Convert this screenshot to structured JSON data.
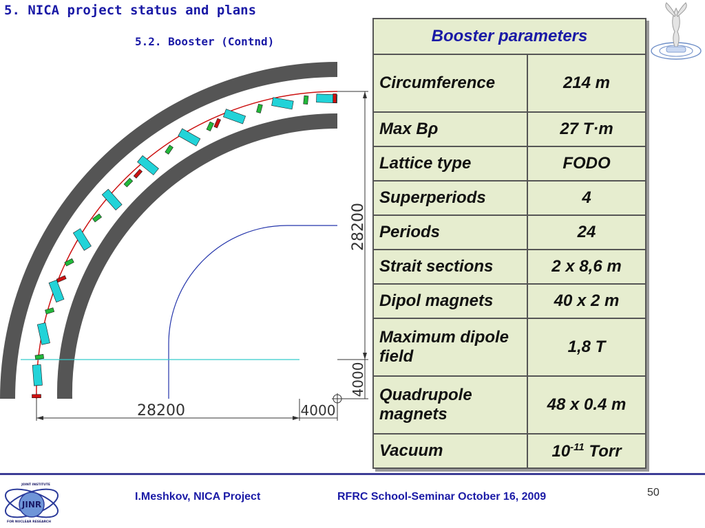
{
  "slide": {
    "title": "5. NICA project status and plans",
    "subtitle": "5.2. Booster (Contnd)"
  },
  "drawing": {
    "dim_vertical_major": "28200",
    "dim_vertical_minor": "4000",
    "dim_horizontal_major": "28200",
    "dim_horizontal_minor": "4000",
    "ring_color": "#555555",
    "beam_color": "#cc1111",
    "dipole_color": "#22d3d8",
    "quad_color": "#22b83a"
  },
  "table": {
    "header": "Booster parameters",
    "rows": [
      {
        "param": "Circumference",
        "value": "214 m"
      },
      {
        "param": "Max Bρ",
        "value": "27  T·m"
      },
      {
        "param": "Lattice type",
        "value": "FODO"
      },
      {
        "param": "Superperiods",
        "value": "4"
      },
      {
        "param": "Periods",
        "value": "24"
      },
      {
        "param": "Strait sections",
        "value": "2 x 8,6 m"
      },
      {
        "param": "Dipol magnets",
        "value": "40 x 2 m"
      },
      {
        "param": "Maximum dipole field",
        "value": "1,8 T"
      },
      {
        "param": "Quadrupole magnets",
        "value": "48 x 0.4 m"
      },
      {
        "param": "Vacuum",
        "value_base": "10",
        "value_exp": "-11",
        "value_unit": " Torr"
      }
    ]
  },
  "footer": {
    "author": "I.Meshkov, NICA Project",
    "event": "RFRC School-Seminar October 16, 2009",
    "page_number": "50",
    "logo_top": "JOINT INSTITUTE",
    "logo_main": "JINR",
    "logo_bottom": "FOR NUCLEAR RESEARCH"
  }
}
